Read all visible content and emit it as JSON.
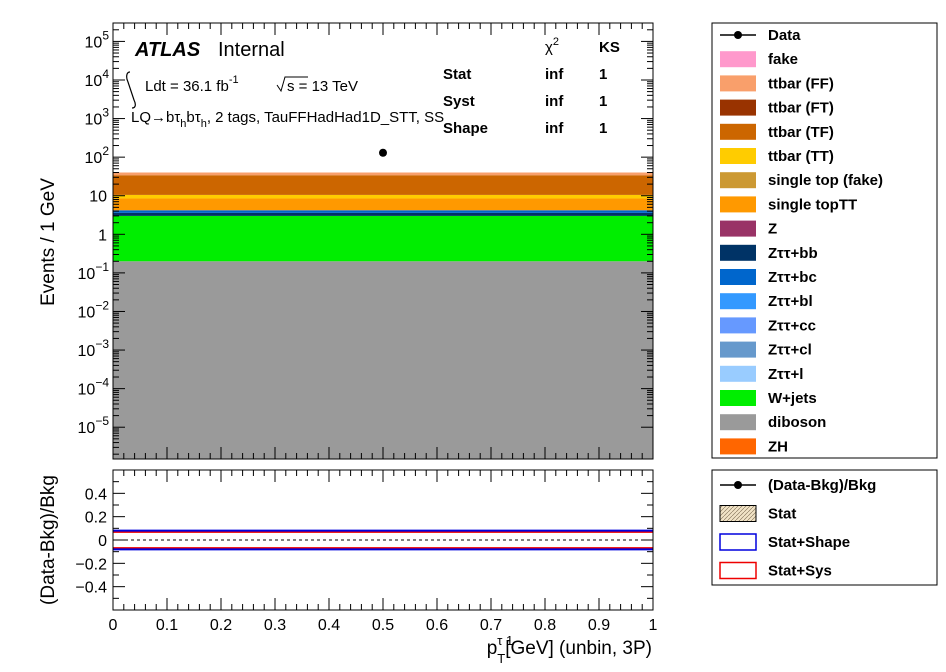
{
  "chart_data": [
    {
      "type": "area",
      "ylabel": "Events / 1 GeV",
      "yscale": "log",
      "ylim": [
        1.5e-06,
        300000.0
      ],
      "xlim": [
        0,
        1
      ],
      "yticks": [
        {
          "v": 1e-05,
          "base": "10",
          "exp": "−5"
        },
        {
          "v": 0.0001,
          "base": "10",
          "exp": "−4"
        },
        {
          "v": 0.001,
          "base": "10",
          "exp": "−3"
        },
        {
          "v": 0.01,
          "base": "10",
          "exp": "−2"
        },
        {
          "v": 0.1,
          "base": "10",
          "exp": "−1"
        },
        {
          "v": 1,
          "base": "1",
          "exp": ""
        },
        {
          "v": 10,
          "base": "10",
          "exp": ""
        },
        {
          "v": 100,
          "base": "10",
          "exp": "2"
        },
        {
          "v": 1000,
          "base": "10",
          "exp": "3"
        },
        {
          "v": 10000,
          "base": "10",
          "exp": "4"
        },
        {
          "v": 100000,
          "base": "10",
          "exp": "5"
        }
      ],
      "stack": [
        {
          "name": "diboson",
          "color": "#9a9a9a",
          "top": 0.2
        },
        {
          "name": "W+jets",
          "color": "#00ee00",
          "top": 3.0
        },
        {
          "name": "Zττ+bb",
          "color": "#003366",
          "top": 3.6
        },
        {
          "name": "Zττ+bc",
          "color": "#0066cc",
          "top": 4.2
        },
        {
          "name": "single topTT",
          "color": "#ff9900",
          "top": 8.5
        },
        {
          "name": "ttbar (TT)",
          "color": "#ffcc00",
          "top": 10.5
        },
        {
          "name": "ttbar (TF)",
          "color": "#cc6600",
          "top": 34
        },
        {
          "name": "ttbar (FF)",
          "color": "#f99f6b",
          "top": 40
        }
      ],
      "data_points": [
        {
          "x": 0.5,
          "y": 130
        }
      ]
    },
    {
      "type": "line",
      "ylabel": "(Data-Bkg)/Bkg",
      "ylim": [
        -0.6,
        0.6
      ],
      "xlim": [
        0,
        1
      ],
      "yticks": [
        -0.4,
        -0.2,
        0,
        0.2,
        0.4
      ],
      "ytick_labels": [
        "−0.4",
        "−0.2",
        "0",
        "0.2",
        "0.4"
      ],
      "xticks": [
        0,
        0.1,
        0.2,
        0.3,
        0.4,
        0.5,
        0.6,
        0.7,
        0.8,
        0.9,
        1
      ],
      "xtick_labels": [
        "0",
        "0.1",
        "0.2",
        "0.3",
        "0.4",
        "0.5",
        "0.6",
        "0.7",
        "0.8",
        "0.9",
        "1"
      ],
      "bands": [
        {
          "name": "Stat+Sys",
          "color": "#ee0000",
          "values": [
            0.07,
            -0.07
          ]
        },
        {
          "name": "Stat+Shape",
          "color": "#0000dd",
          "values": [
            0.08,
            -0.08
          ]
        }
      ],
      "reference_line": 0
    }
  ],
  "text": {
    "atlas": "ATLAS",
    "internal": "Internal",
    "lumi_lead": "Ldt = 36.1 fb",
    "lumi_exp": "-1",
    "energy": "s = 13 TeV",
    "region": "LQ→bτ",
    "region_sub1": "h",
    "region_mid": "bτ",
    "region_sub2": "h",
    "region_tail": ", 2 tags, TauFFHadHad1D_STT, SS",
    "chi2": "χ",
    "chi2_exp": "2",
    "ks": "KS",
    "rows": [
      {
        "label": "Stat",
        "chi2": "inf",
        "ks": "1"
      },
      {
        "label": "Syst",
        "chi2": "inf",
        "ks": "1"
      },
      {
        "label": "Shape",
        "chi2": "inf",
        "ks": "1"
      }
    ],
    "xlabel_p": "p",
    "xlabel_sub": "T",
    "xlabel_sup": "τ 1",
    "xlabel_tail": "[GeV] (unbin, 3P)"
  },
  "legend_main": [
    {
      "label": "Data",
      "kind": "marker",
      "color": "#000000"
    },
    {
      "label": "fake",
      "kind": "fill",
      "color": "#ff99cc"
    },
    {
      "label": "ttbar (FF)",
      "kind": "fill",
      "color": "#f99f6b"
    },
    {
      "label": "ttbar (FT)",
      "kind": "fill",
      "color": "#993300"
    },
    {
      "label": "ttbar (TF)",
      "kind": "fill",
      "color": "#cc6600"
    },
    {
      "label": "ttbar (TT)",
      "kind": "fill",
      "color": "#ffcc00"
    },
    {
      "label": "single top (fake)",
      "kind": "fill",
      "color": "#cc9933"
    },
    {
      "label": "single topTT",
      "kind": "fill",
      "color": "#ff9900"
    },
    {
      "label": "Z",
      "kind": "fill",
      "color": "#993366"
    },
    {
      "label": "Zττ+bb",
      "kind": "fill",
      "color": "#003366"
    },
    {
      "label": "Zττ+bc",
      "kind": "fill",
      "color": "#0066cc"
    },
    {
      "label": "Zττ+bl",
      "kind": "fill",
      "color": "#3399ff"
    },
    {
      "label": "Zττ+cc",
      "kind": "fill",
      "color": "#6699ff"
    },
    {
      "label": "Zττ+cl",
      "kind": "fill",
      "color": "#6699cc"
    },
    {
      "label": "Zττ+l",
      "kind": "fill",
      "color": "#99ccff"
    },
    {
      "label": "W+jets",
      "kind": "fill",
      "color": "#00ee00"
    },
    {
      "label": "diboson",
      "kind": "fill",
      "color": "#9a9a9a"
    },
    {
      "label": "ZH",
      "kind": "fill",
      "color": "#ff6600"
    }
  ],
  "legend_ratio": [
    {
      "label": "(Data-Bkg)/Bkg",
      "kind": "marker",
      "color": "#000000"
    },
    {
      "label": "Stat",
      "kind": "hatch",
      "color": "#000000"
    },
    {
      "label": "Stat+Shape",
      "kind": "outline",
      "color": "#0000dd"
    },
    {
      "label": "Stat+Sys",
      "kind": "outline",
      "color": "#ee0000"
    }
  ]
}
